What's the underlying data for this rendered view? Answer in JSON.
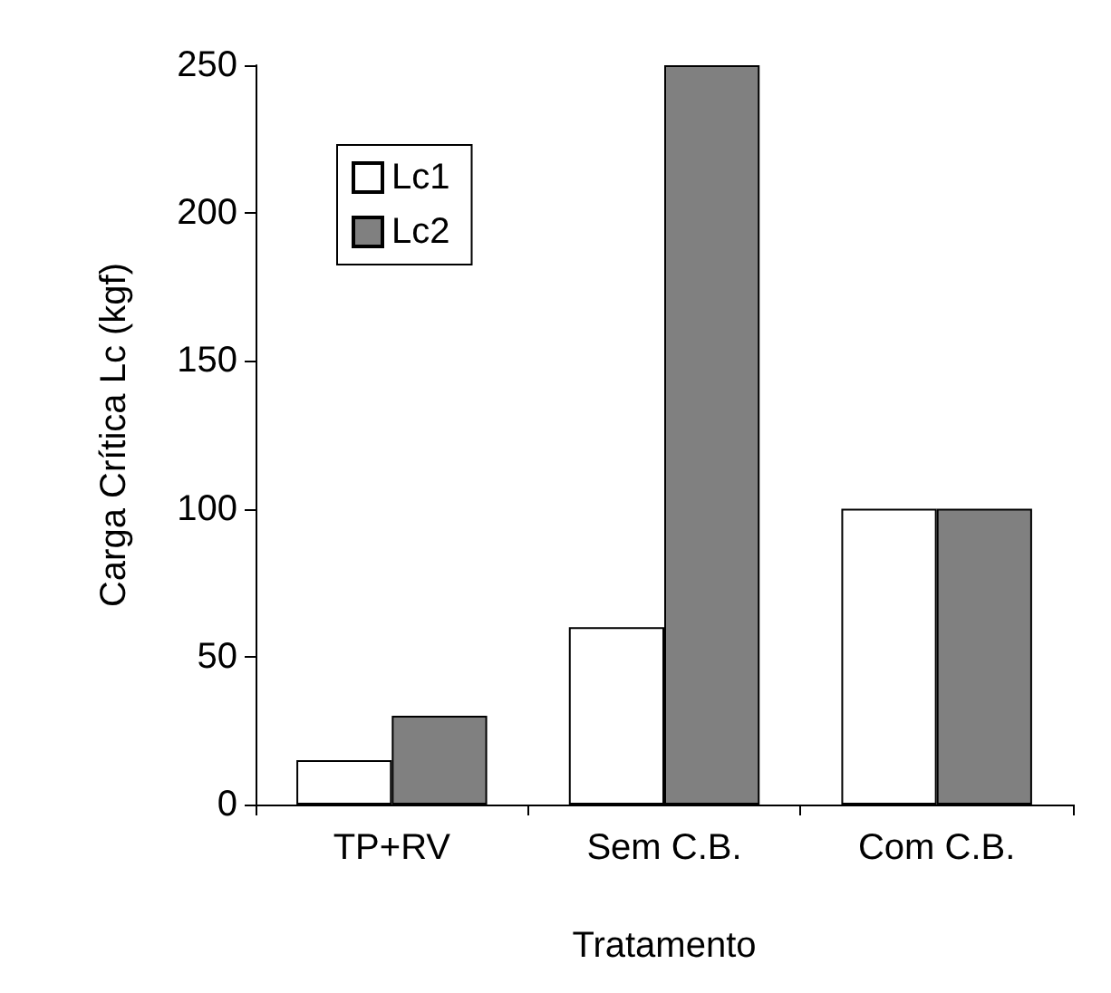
{
  "chart_data": {
    "type": "bar",
    "xlabel": "Tratamento",
    "ylabel": "Carga Crítica Lc (kgf)",
    "categories": [
      "TP+RV",
      "Sem C.B.",
      "Com C.B."
    ],
    "series": [
      {
        "name": "Lc1",
        "color": "#ffffff",
        "values": [
          15,
          60,
          100
        ]
      },
      {
        "name": "Lc2",
        "color": "#808080",
        "values": [
          30,
          250,
          100
        ]
      }
    ],
    "ylim": [
      0,
      250
    ],
    "yticks": [
      0,
      50,
      100,
      150,
      200,
      250
    ],
    "grid": false,
    "legend": "top left"
  }
}
